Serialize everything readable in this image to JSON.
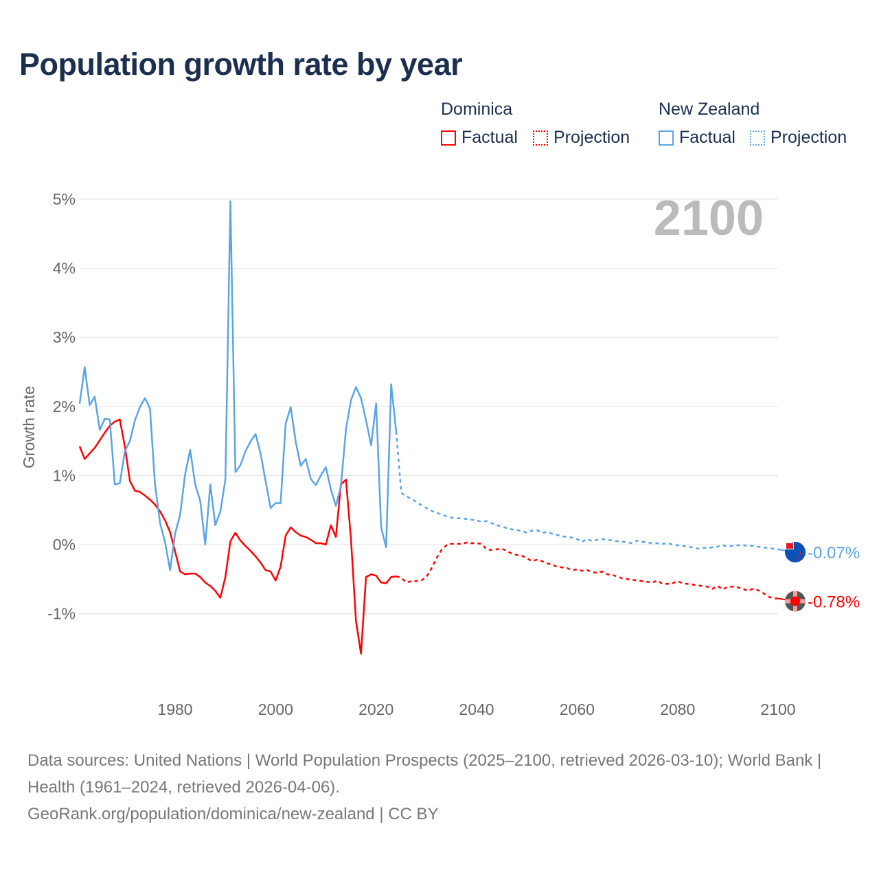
{
  "title": "Population growth rate by year",
  "legend": {
    "groups": [
      {
        "name": "Dominica",
        "factual": "Factual",
        "projection": "Projection",
        "color": "#ff0000"
      },
      {
        "name": "New Zealand",
        "factual": "Factual",
        "projection": "Projection",
        "color": "#5ba4e6"
      }
    ]
  },
  "footer": {
    "line1": "Data sources: United Nations | World Population Prospects (2025–2100, retrieved 2026-03-10); World Bank | Health (1961–2024, retrieved 2026-04-06).",
    "line2": "GeoRank.org/population/dominica/new-zealand | CC BY"
  },
  "chart_data": {
    "type": "line",
    "title": "Population growth rate by year",
    "ylabel": "Growth rate",
    "xlabel": "",
    "year_label": "2100",
    "xlim": [
      1961,
      2100
    ],
    "ylim": [
      -2,
      5
    ],
    "x_ticks": [
      1980,
      2000,
      2020,
      2040,
      2060,
      2080,
      2100
    ],
    "y_ticks": [
      {
        "v": 5,
        "label": "5%"
      },
      {
        "v": 4,
        "label": "4%"
      },
      {
        "v": 3,
        "label": "3%"
      },
      {
        "v": 2,
        "label": "2%"
      },
      {
        "v": 1,
        "label": "1%"
      },
      {
        "v": 0,
        "label": "0%"
      },
      {
        "v": -1,
        "label": "-1%"
      }
    ],
    "factual_start": 1961,
    "projection_start": 2025,
    "series": [
      {
        "name": "Dominica",
        "color": "#ff0000",
        "end_label": "-0.78%",
        "flag": "dominica-flag",
        "factual": [
          1.42,
          1.24,
          1.32,
          1.4,
          1.51,
          1.62,
          1.72,
          1.78,
          1.81,
          1.42,
          0.92,
          0.78,
          0.76,
          0.71,
          0.65,
          0.58,
          0.48,
          0.35,
          0.18,
          -0.1,
          -0.39,
          -0.43,
          -0.42,
          -0.42,
          -0.47,
          -0.55,
          -0.6,
          -0.67,
          -0.77,
          -0.47,
          0.05,
          0.17,
          0.06,
          -0.02,
          -0.09,
          -0.17,
          -0.26,
          -0.37,
          -0.39,
          -0.52,
          -0.32,
          0.13,
          0.25,
          0.18,
          0.13,
          0.11,
          0.07,
          0.02,
          0.02,
          0.0,
          0.28,
          0.11,
          0.87,
          0.94,
          0.08,
          -1.11,
          -1.58,
          -0.47,
          -0.43,
          -0.45,
          -0.55,
          -0.56,
          -0.47,
          -0.46
        ],
        "projection": [
          -0.48,
          -0.55,
          -0.53,
          -0.53,
          -0.52,
          -0.47,
          -0.35,
          -0.2,
          -0.08,
          -0.01,
          0.01,
          0.01,
          0.01,
          0.03,
          0.02,
          0.02,
          0.01,
          -0.07,
          -0.08,
          -0.07,
          -0.06,
          -0.09,
          -0.13,
          -0.15,
          -0.16,
          -0.2,
          -0.24,
          -0.22,
          -0.24,
          -0.27,
          -0.29,
          -0.32,
          -0.33,
          -0.34,
          -0.37,
          -0.36,
          -0.38,
          -0.37,
          -0.4,
          -0.41,
          -0.39,
          -0.43,
          -0.44,
          -0.46,
          -0.49,
          -0.5,
          -0.51,
          -0.52,
          -0.53,
          -0.54,
          -0.55,
          -0.52,
          -0.57,
          -0.57,
          -0.56,
          -0.53,
          -0.56,
          -0.57,
          -0.58,
          -0.59,
          -0.6,
          -0.61,
          -0.64,
          -0.6,
          -0.65,
          -0.61,
          -0.61,
          -0.62,
          -0.64,
          -0.67,
          -0.64,
          -0.66,
          -0.7,
          -0.75,
          -0.78,
          -0.78
        ]
      },
      {
        "name": "New Zealand",
        "color": "#5ba4e6",
        "end_label": "-0.07%",
        "flag": "new-zealand-flag",
        "factual": [
          2.04,
          2.57,
          2.02,
          2.14,
          1.66,
          1.82,
          1.81,
          0.87,
          0.89,
          1.35,
          1.5,
          1.8,
          1.99,
          2.12,
          1.97,
          0.87,
          0.31,
          0.03,
          -0.37,
          0.16,
          0.43,
          1.02,
          1.37,
          0.87,
          0.63,
          0.0,
          0.87,
          0.28,
          0.48,
          0.94,
          4.97,
          1.05,
          1.15,
          1.35,
          1.49,
          1.6,
          1.32,
          0.92,
          0.53,
          0.6,
          0.6,
          1.75,
          1.99,
          1.49,
          1.14,
          1.24,
          0.95,
          0.86,
          1.0,
          1.12,
          0.8,
          0.56,
          0.84,
          1.67,
          2.09,
          2.28,
          2.12,
          1.8,
          1.44,
          2.04,
          0.25,
          -0.04,
          2.32,
          1.64
        ],
        "projection": [
          0.75,
          0.7,
          0.66,
          0.62,
          0.57,
          0.53,
          0.49,
          0.46,
          0.44,
          0.41,
          0.39,
          0.38,
          0.38,
          0.37,
          0.36,
          0.35,
          0.33,
          0.34,
          0.31,
          0.28,
          0.26,
          0.24,
          0.22,
          0.21,
          0.2,
          0.17,
          0.2,
          0.21,
          0.17,
          0.18,
          0.16,
          0.14,
          0.12,
          0.11,
          0.1,
          0.08,
          0.04,
          0.08,
          0.05,
          0.07,
          0.08,
          0.07,
          0.06,
          0.05,
          0.04,
          0.03,
          0.02,
          0.06,
          0.04,
          0.03,
          0.02,
          0.02,
          0.01,
          0.02,
          0.0,
          -0.01,
          -0.02,
          -0.03,
          -0.04,
          -0.06,
          -0.05,
          -0.05,
          -0.04,
          -0.03,
          -0.01,
          -0.03,
          -0.02,
          -0.01,
          -0.01,
          -0.02,
          -0.02,
          -0.03,
          -0.04,
          -0.05,
          -0.06,
          -0.07
        ]
      }
    ]
  }
}
